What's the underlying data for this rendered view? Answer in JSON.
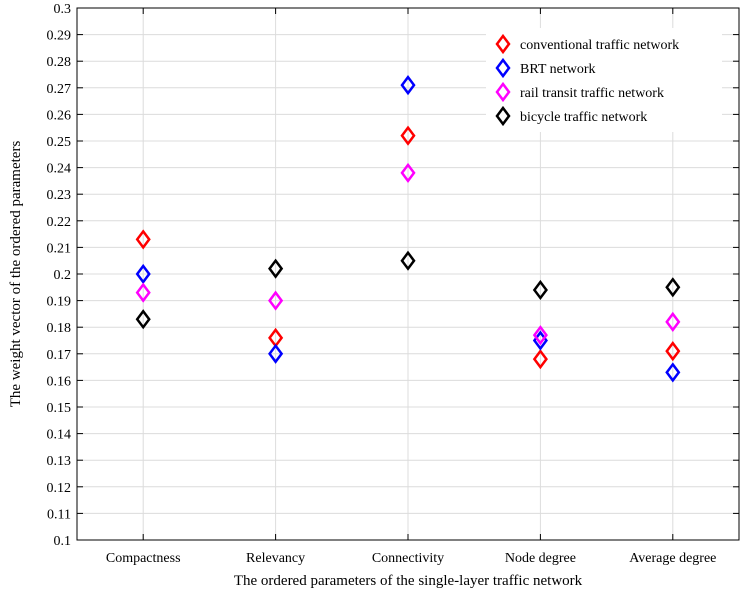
{
  "chart_data": {
    "type": "scatter",
    "marker": "diamond",
    "title": "",
    "xlabel": "The ordered parameters of the single-layer traffic network",
    "ylabel": "The weight vector of the ordered parameters",
    "categories": [
      "Compactness",
      "Relevancy",
      "Connectivity",
      "Node degree",
      "Average degree"
    ],
    "ylim": [
      0.1,
      0.3
    ],
    "yticks": [
      "0.1",
      "0.11",
      "0.12",
      "0.13",
      "0.14",
      "0.15",
      "0.16",
      "0.17",
      "0.18",
      "0.19",
      "0.2",
      "0.21",
      "0.22",
      "0.23",
      "0.24",
      "0.25",
      "0.26",
      "0.27",
      "0.28",
      "0.29",
      "0.3"
    ],
    "grid": true,
    "legend_position": "top-right",
    "series": [
      {
        "name": "conventional traffic network",
        "color": "#ff0000",
        "values": [
          0.213,
          0.176,
          0.252,
          0.168,
          0.171
        ]
      },
      {
        "name": "BRT network",
        "color": "#0000ff",
        "values": [
          0.2,
          0.17,
          0.271,
          0.175,
          0.163
        ]
      },
      {
        "name": "rail transit traffic network",
        "color": "#ff00ff",
        "values": [
          0.193,
          0.19,
          0.238,
          0.177,
          0.182
        ]
      },
      {
        "name": "bicycle traffic network",
        "color": "#000000",
        "values": [
          0.183,
          0.202,
          0.205,
          0.194,
          0.195
        ]
      }
    ]
  }
}
